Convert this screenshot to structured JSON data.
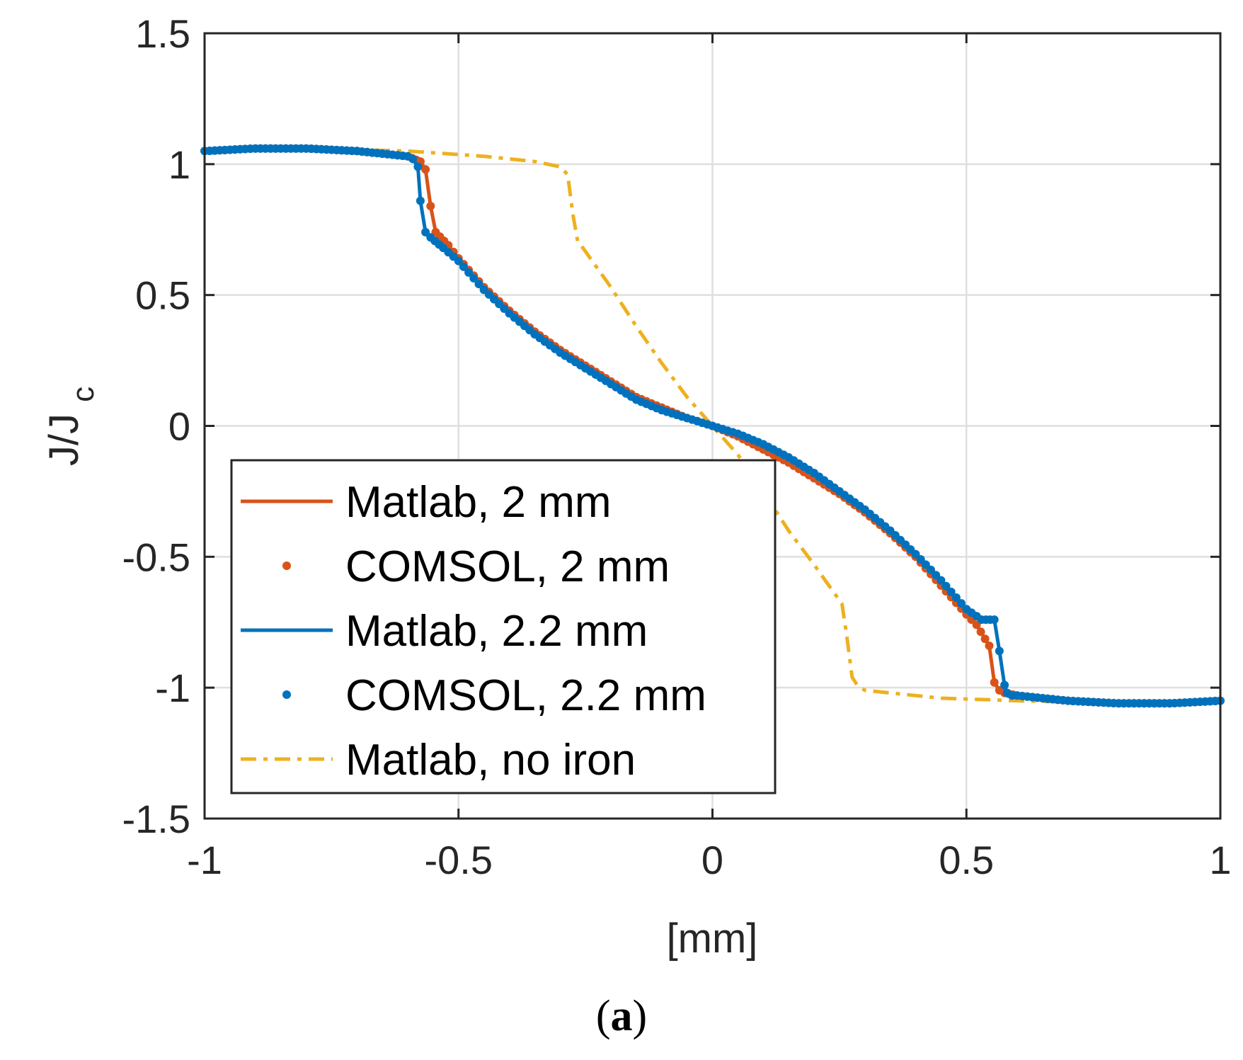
{
  "chart_data": {
    "type": "line",
    "title": "",
    "xlabel": "[mm]",
    "ylabel": "J/J",
    "ylabel_subscript": "c",
    "xlim": [
      -1,
      1
    ],
    "ylim": [
      -1.5,
      1.5
    ],
    "xticks": [
      -1,
      -0.5,
      0,
      0.5,
      1
    ],
    "xtick_labels": [
      "-1",
      "-0.5",
      "0",
      "0.5",
      "1"
    ],
    "yticks": [
      -1.5,
      -1,
      -0.5,
      0,
      0.5,
      1,
      1.5
    ],
    "ytick_labels": [
      "-1.5",
      "-1",
      "-0.5",
      "0",
      "0.5",
      "1",
      "1.5"
    ],
    "grid": true,
    "legend_position": "lower-left",
    "series": [
      {
        "name": "Matlab, 2 mm",
        "style": "solid",
        "color": "#D95319",
        "x": [
          -1,
          -0.9,
          -0.8,
          -0.7,
          -0.65,
          -0.6,
          -0.575,
          -0.565,
          -0.555,
          -0.545,
          -0.52,
          -0.5,
          -0.45,
          -0.4,
          -0.35,
          -0.3,
          -0.25,
          -0.2,
          -0.15,
          -0.1,
          -0.05,
          0,
          0.05,
          0.1,
          0.15,
          0.2,
          0.25,
          0.3,
          0.35,
          0.4,
          0.45,
          0.5,
          0.52,
          0.545,
          0.555,
          0.565,
          0.575,
          0.6,
          0.65,
          0.7,
          0.8,
          0.9,
          1
        ],
        "y": [
          1.05,
          1.06,
          1.06,
          1.05,
          1.04,
          1.03,
          1.01,
          0.98,
          0.84,
          0.74,
          0.69,
          0.64,
          0.53,
          0.44,
          0.36,
          0.29,
          0.23,
          0.17,
          0.11,
          0.07,
          0.03,
          0,
          -0.04,
          -0.09,
          -0.14,
          -0.2,
          -0.26,
          -0.33,
          -0.41,
          -0.5,
          -0.61,
          -0.72,
          -0.76,
          -0.84,
          -0.98,
          -1.01,
          -1.02,
          -1.03,
          -1.04,
          -1.05,
          -1.06,
          -1.06,
          -1.05
        ]
      },
      {
        "name": "COMSOL, 2 mm",
        "style": "dots",
        "color": "#D95319",
        "x": [
          -1,
          -0.9,
          -0.8,
          -0.7,
          -0.65,
          -0.6,
          -0.575,
          -0.565,
          -0.555,
          -0.545,
          -0.52,
          -0.5,
          -0.45,
          -0.4,
          -0.35,
          -0.3,
          -0.25,
          -0.2,
          -0.15,
          -0.1,
          -0.05,
          0,
          0.05,
          0.1,
          0.15,
          0.2,
          0.25,
          0.3,
          0.35,
          0.4,
          0.45,
          0.5,
          0.52,
          0.545,
          0.555,
          0.565,
          0.575,
          0.6,
          0.65,
          0.7,
          0.8,
          0.9,
          1
        ],
        "y": [
          1.05,
          1.06,
          1.06,
          1.05,
          1.04,
          1.03,
          1.01,
          0.98,
          0.84,
          0.74,
          0.69,
          0.64,
          0.53,
          0.44,
          0.36,
          0.29,
          0.23,
          0.17,
          0.11,
          0.07,
          0.03,
          0,
          -0.04,
          -0.09,
          -0.14,
          -0.2,
          -0.26,
          -0.33,
          -0.41,
          -0.5,
          -0.61,
          -0.72,
          -0.76,
          -0.84,
          -0.98,
          -1.01,
          -1.02,
          -1.03,
          -1.04,
          -1.05,
          -1.06,
          -1.06,
          -1.05
        ]
      },
      {
        "name": "Matlab, 2.2 mm",
        "style": "solid",
        "color": "#0072BD",
        "x": [
          -1,
          -0.9,
          -0.8,
          -0.7,
          -0.65,
          -0.6,
          -0.59,
          -0.58,
          -0.575,
          -0.565,
          -0.555,
          -0.53,
          -0.5,
          -0.45,
          -0.4,
          -0.35,
          -0.3,
          -0.25,
          -0.2,
          -0.15,
          -0.1,
          -0.05,
          0,
          0.05,
          0.1,
          0.15,
          0.2,
          0.25,
          0.3,
          0.35,
          0.4,
          0.45,
          0.5,
          0.53,
          0.555,
          0.565,
          0.575,
          0.58,
          0.59,
          0.6,
          0.65,
          0.7,
          0.8,
          0.9,
          1
        ],
        "y": [
          1.05,
          1.06,
          1.06,
          1.05,
          1.04,
          1.03,
          1.02,
          0.99,
          0.86,
          0.74,
          0.72,
          0.68,
          0.63,
          0.52,
          0.43,
          0.35,
          0.28,
          0.22,
          0.16,
          0.1,
          0.06,
          0.03,
          0,
          -0.03,
          -0.07,
          -0.12,
          -0.18,
          -0.25,
          -0.32,
          -0.4,
          -0.49,
          -0.59,
          -0.7,
          -0.74,
          -0.74,
          -0.86,
          -0.99,
          -1.02,
          -1.03,
          -1.03,
          -1.04,
          -1.05,
          -1.06,
          -1.06,
          -1.05
        ]
      },
      {
        "name": "COMSOL, 2.2 mm",
        "style": "dots",
        "color": "#0072BD",
        "x": [
          -1,
          -0.9,
          -0.8,
          -0.7,
          -0.65,
          -0.6,
          -0.59,
          -0.58,
          -0.575,
          -0.565,
          -0.555,
          -0.53,
          -0.5,
          -0.45,
          -0.4,
          -0.35,
          -0.3,
          -0.25,
          -0.2,
          -0.15,
          -0.1,
          -0.05,
          0,
          0.05,
          0.1,
          0.15,
          0.2,
          0.25,
          0.3,
          0.35,
          0.4,
          0.45,
          0.5,
          0.53,
          0.555,
          0.565,
          0.575,
          0.58,
          0.59,
          0.6,
          0.65,
          0.7,
          0.8,
          0.9,
          1
        ],
        "y": [
          1.05,
          1.06,
          1.06,
          1.05,
          1.04,
          1.03,
          1.02,
          0.99,
          0.86,
          0.74,
          0.72,
          0.68,
          0.63,
          0.52,
          0.43,
          0.35,
          0.28,
          0.22,
          0.16,
          0.1,
          0.06,
          0.03,
          0,
          -0.03,
          -0.07,
          -0.12,
          -0.18,
          -0.25,
          -0.32,
          -0.4,
          -0.49,
          -0.59,
          -0.7,
          -0.74,
          -0.74,
          -0.86,
          -0.99,
          -1.02,
          -1.03,
          -1.03,
          -1.04,
          -1.05,
          -1.06,
          -1.06,
          -1.05
        ]
      },
      {
        "name": "Matlab, no iron",
        "style": "dashdot",
        "color": "#EDB120",
        "x": [
          -1,
          -0.8,
          -0.6,
          -0.45,
          -0.35,
          -0.3,
          -0.285,
          -0.275,
          -0.265,
          -0.255,
          -0.2,
          -0.15,
          -0.1,
          -0.05,
          0,
          0.05,
          0.1,
          0.15,
          0.2,
          0.255,
          0.265,
          0.275,
          0.285,
          0.3,
          0.35,
          0.45,
          0.6,
          0.8,
          1
        ],
        "y": [
          1.05,
          1.06,
          1.05,
          1.03,
          1.01,
          0.99,
          0.96,
          0.81,
          0.7,
          0.68,
          0.53,
          0.38,
          0.24,
          0.11,
          0,
          -0.11,
          -0.25,
          -0.4,
          -0.53,
          -0.68,
          -0.81,
          -0.96,
          -0.99,
          -1.01,
          -1.02,
          -1.04,
          -1.05,
          -1.06,
          -1.05
        ]
      }
    ]
  },
  "caption": {
    "open": "(",
    "letter": "a",
    "close": ")"
  }
}
